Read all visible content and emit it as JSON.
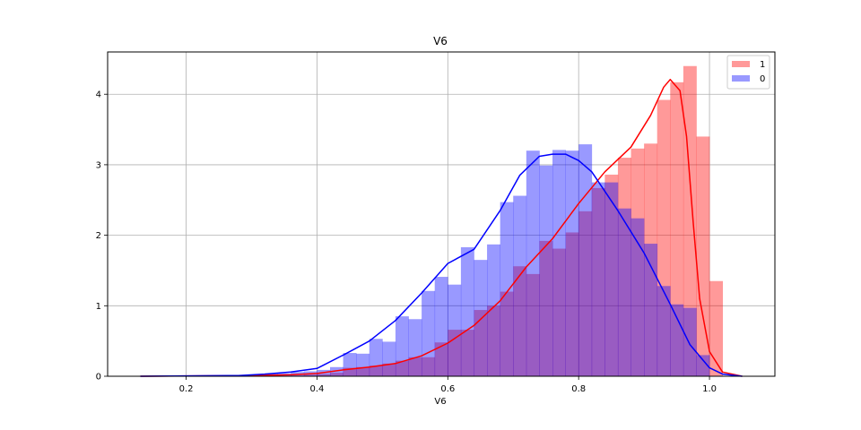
{
  "chart_data": {
    "type": "histogram",
    "title": "V6",
    "xlabel": "V6",
    "ylabel": "",
    "xlim": [
      0.08,
      1.1
    ],
    "ylim": [
      0,
      4.6
    ],
    "xticks": [
      "0.2",
      "0.4",
      "0.6",
      "0.8",
      "1.0"
    ],
    "yticks": [
      "0",
      "1",
      "2",
      "3",
      "4"
    ],
    "grid": true,
    "legend_position": "top-right",
    "bin_width": 0.0205,
    "series": [
      {
        "name": "1",
        "color": "#ff0000",
        "bar_alpha": 0.4,
        "bins": [
          {
            "x": 0.36,
            "y": 0.01
          },
          {
            "x": 0.38,
            "y": 0.02
          },
          {
            "x": 0.4,
            "y": 0.03
          },
          {
            "x": 0.42,
            "y": 0.05
          },
          {
            "x": 0.44,
            "y": 0.12
          },
          {
            "x": 0.46,
            "y": 0.13
          },
          {
            "x": 0.48,
            "y": 0.15
          },
          {
            "x": 0.5,
            "y": 0.18
          },
          {
            "x": 0.52,
            "y": 0.22
          },
          {
            "x": 0.54,
            "y": 0.27
          },
          {
            "x": 0.56,
            "y": 0.27
          },
          {
            "x": 0.58,
            "y": 0.48
          },
          {
            "x": 0.6,
            "y": 0.66
          },
          {
            "x": 0.62,
            "y": 0.66
          },
          {
            "x": 0.64,
            "y": 0.94
          },
          {
            "x": 0.66,
            "y": 1.0
          },
          {
            "x": 0.68,
            "y": 1.2
          },
          {
            "x": 0.7,
            "y": 1.56
          },
          {
            "x": 0.72,
            "y": 1.45
          },
          {
            "x": 0.74,
            "y": 1.92
          },
          {
            "x": 0.76,
            "y": 1.81
          },
          {
            "x": 0.78,
            "y": 2.04
          },
          {
            "x": 0.8,
            "y": 2.34
          },
          {
            "x": 0.82,
            "y": 2.67
          },
          {
            "x": 0.84,
            "y": 2.86
          },
          {
            "x": 0.86,
            "y": 3.1
          },
          {
            "x": 0.88,
            "y": 3.23
          },
          {
            "x": 0.9,
            "y": 3.3
          },
          {
            "x": 0.92,
            "y": 3.92
          },
          {
            "x": 0.94,
            "y": 4.17
          },
          {
            "x": 0.96,
            "y": 4.4
          },
          {
            "x": 0.98,
            "y": 3.4
          },
          {
            "x": 1.0,
            "y": 1.35
          }
        ],
        "kde": [
          [
            0.13,
            0.0
          ],
          [
            0.3,
            0.01
          ],
          [
            0.36,
            0.02
          ],
          [
            0.4,
            0.04
          ],
          [
            0.44,
            0.09
          ],
          [
            0.48,
            0.13
          ],
          [
            0.52,
            0.18
          ],
          [
            0.56,
            0.29
          ],
          [
            0.6,
            0.47
          ],
          [
            0.64,
            0.72
          ],
          [
            0.68,
            1.07
          ],
          [
            0.72,
            1.55
          ],
          [
            0.76,
            1.95
          ],
          [
            0.8,
            2.45
          ],
          [
            0.84,
            2.9
          ],
          [
            0.88,
            3.25
          ],
          [
            0.91,
            3.7
          ],
          [
            0.93,
            4.1
          ],
          [
            0.94,
            4.21
          ],
          [
            0.955,
            4.05
          ],
          [
            0.965,
            3.4
          ],
          [
            0.975,
            2.2
          ],
          [
            0.985,
            1.1
          ],
          [
            1.0,
            0.35
          ],
          [
            1.02,
            0.06
          ],
          [
            1.05,
            0.0
          ]
        ]
      },
      {
        "name": "0",
        "color": "#0000ff",
        "bar_alpha": 0.4,
        "bins": [
          {
            "x": 0.32,
            "y": 0.04
          },
          {
            "x": 0.34,
            "y": 0.04
          },
          {
            "x": 0.36,
            "y": 0.06
          },
          {
            "x": 0.38,
            "y": 0.07
          },
          {
            "x": 0.4,
            "y": 0.09
          },
          {
            "x": 0.42,
            "y": 0.13
          },
          {
            "x": 0.44,
            "y": 0.33
          },
          {
            "x": 0.46,
            "y": 0.32
          },
          {
            "x": 0.48,
            "y": 0.53
          },
          {
            "x": 0.5,
            "y": 0.49
          },
          {
            "x": 0.52,
            "y": 0.85
          },
          {
            "x": 0.54,
            "y": 0.81
          },
          {
            "x": 0.56,
            "y": 1.21
          },
          {
            "x": 0.58,
            "y": 1.41
          },
          {
            "x": 0.6,
            "y": 1.3
          },
          {
            "x": 0.62,
            "y": 1.83
          },
          {
            "x": 0.64,
            "y": 1.65
          },
          {
            "x": 0.66,
            "y": 1.87
          },
          {
            "x": 0.68,
            "y": 2.47
          },
          {
            "x": 0.7,
            "y": 2.56
          },
          {
            "x": 0.72,
            "y": 3.2
          },
          {
            "x": 0.74,
            "y": 2.99
          },
          {
            "x": 0.76,
            "y": 3.21
          },
          {
            "x": 0.78,
            "y": 3.2
          },
          {
            "x": 0.8,
            "y": 3.29
          },
          {
            "x": 0.82,
            "y": 2.75
          },
          {
            "x": 0.84,
            "y": 2.75
          },
          {
            "x": 0.86,
            "y": 2.38
          },
          {
            "x": 0.88,
            "y": 2.24
          },
          {
            "x": 0.9,
            "y": 1.88
          },
          {
            "x": 0.92,
            "y": 1.28
          },
          {
            "x": 0.94,
            "y": 1.02
          },
          {
            "x": 0.96,
            "y": 0.97
          },
          {
            "x": 0.98,
            "y": 0.3
          }
        ],
        "kde": [
          [
            0.13,
            0.0
          ],
          [
            0.28,
            0.01
          ],
          [
            0.32,
            0.03
          ],
          [
            0.36,
            0.06
          ],
          [
            0.4,
            0.11
          ],
          [
            0.44,
            0.3
          ],
          [
            0.48,
            0.5
          ],
          [
            0.52,
            0.79
          ],
          [
            0.56,
            1.18
          ],
          [
            0.6,
            1.6
          ],
          [
            0.64,
            1.8
          ],
          [
            0.68,
            2.35
          ],
          [
            0.71,
            2.85
          ],
          [
            0.74,
            3.12
          ],
          [
            0.76,
            3.15
          ],
          [
            0.78,
            3.15
          ],
          [
            0.8,
            3.06
          ],
          [
            0.82,
            2.9
          ],
          [
            0.86,
            2.35
          ],
          [
            0.9,
            1.75
          ],
          [
            0.94,
            1.02
          ],
          [
            0.97,
            0.45
          ],
          [
            1.0,
            0.12
          ],
          [
            1.02,
            0.03
          ],
          [
            1.05,
            0.0
          ]
        ]
      }
    ]
  }
}
